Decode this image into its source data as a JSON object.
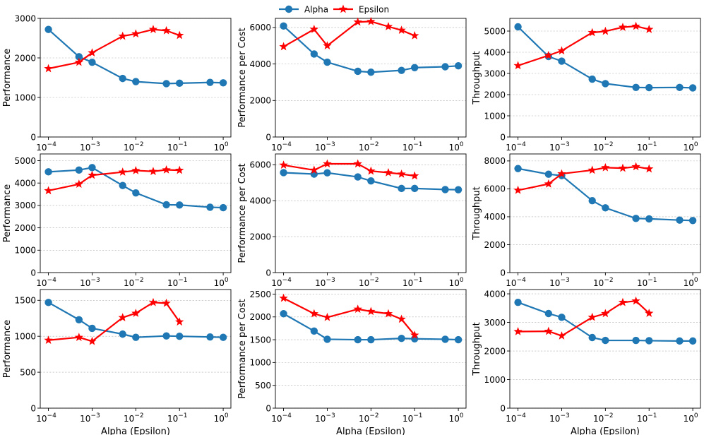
{
  "legend": {
    "items": [
      {
        "name": "Alpha",
        "color": "#1f77b4",
        "marker": "circle"
      },
      {
        "name": "Epsilon",
        "color": "#ff0000",
        "marker": "star"
      }
    ]
  },
  "chart_data": [
    {
      "type": "line",
      "row": 1,
      "col": 1,
      "ylabel": "Performance",
      "xlabel": "",
      "xscale": "log",
      "xlim": [
        6.5e-05,
        1.5
      ],
      "ylim": [
        0,
        3000
      ],
      "yticks": [
        0,
        1000,
        2000,
        3000
      ],
      "xticks": [
        "-4",
        "-3",
        "-2",
        "-1",
        "0"
      ],
      "series": [
        {
          "name": "Alpha",
          "x": [
            0.0001,
            0.0005,
            0.001,
            0.005,
            0.01,
            0.05,
            0.1,
            0.5,
            1
          ],
          "y": [
            2720,
            2030,
            1890,
            1480,
            1400,
            1350,
            1360,
            1380,
            1370
          ]
        },
        {
          "name": "Epsilon",
          "x": [
            0.0001,
            0.0005,
            0.001,
            0.005,
            0.01,
            0.025,
            0.05,
            0.1
          ],
          "y": [
            1730,
            1890,
            2130,
            2550,
            2610,
            2720,
            2690,
            2570
          ]
        }
      ]
    },
    {
      "type": "line",
      "row": 1,
      "col": 2,
      "ylabel": "Performance per Cost",
      "xlabel": "",
      "xscale": "log",
      "xlim": [
        6.5e-05,
        1.5
      ],
      "ylim": [
        0,
        6500
      ],
      "yticks": [
        0,
        2000,
        4000,
        6000
      ],
      "xticks": [
        "-4",
        "-3",
        "-2",
        "-1",
        "0"
      ],
      "series": [
        {
          "name": "Alpha",
          "x": [
            0.0001,
            0.0005,
            0.001,
            0.005,
            0.01,
            0.05,
            0.1,
            0.5,
            1
          ],
          "y": [
            6080,
            4550,
            4100,
            3600,
            3550,
            3650,
            3800,
            3850,
            3900
          ]
        },
        {
          "name": "Epsilon",
          "x": [
            0.0001,
            0.0005,
            0.001,
            0.005,
            0.01,
            0.025,
            0.05,
            0.1
          ],
          "y": [
            4950,
            5900,
            5000,
            6300,
            6330,
            6050,
            5850,
            5550
          ]
        }
      ]
    },
    {
      "type": "line",
      "row": 1,
      "col": 3,
      "ylabel": "Throughput",
      "xlabel": "",
      "xscale": "log",
      "xlim": [
        6.5e-05,
        1.5
      ],
      "ylim": [
        0,
        5600
      ],
      "yticks": [
        0,
        1000,
        2000,
        3000,
        4000,
        5000
      ],
      "xticks": [
        "-4",
        "-3",
        "-2",
        "-1",
        "0"
      ],
      "series": [
        {
          "name": "Alpha",
          "x": [
            0.0001,
            0.0005,
            0.001,
            0.005,
            0.01,
            0.05,
            0.1,
            0.5,
            1
          ],
          "y": [
            5200,
            3800,
            3580,
            2730,
            2520,
            2340,
            2330,
            2340,
            2320
          ]
        },
        {
          "name": "Epsilon",
          "x": [
            0.0001,
            0.0005,
            0.001,
            0.005,
            0.01,
            0.025,
            0.05,
            0.1
          ],
          "y": [
            3370,
            3850,
            4070,
            4930,
            4990,
            5180,
            5230,
            5080
          ]
        }
      ]
    },
    {
      "type": "line",
      "row": 2,
      "col": 1,
      "ylabel": "Performance",
      "xlabel": "",
      "xscale": "log",
      "xlim": [
        6.5e-05,
        1.5
      ],
      "ylim": [
        0,
        5300
      ],
      "yticks": [
        0,
        1000,
        2000,
        3000,
        4000,
        5000
      ],
      "xticks": [
        "-4",
        "-3",
        "-2",
        "-1",
        "0"
      ],
      "series": [
        {
          "name": "Alpha",
          "x": [
            0.0001,
            0.0005,
            0.001,
            0.005,
            0.01,
            0.05,
            0.1,
            0.5,
            1
          ],
          "y": [
            4500,
            4580,
            4690,
            3890,
            3560,
            3030,
            3020,
            2920,
            2900
          ]
        },
        {
          "name": "Epsilon",
          "x": [
            0.0001,
            0.0005,
            0.001,
            0.005,
            0.01,
            0.025,
            0.05,
            0.1
          ],
          "y": [
            3660,
            3950,
            4350,
            4490,
            4560,
            4520,
            4590,
            4570
          ]
        }
      ]
    },
    {
      "type": "line",
      "row": 2,
      "col": 2,
      "ylabel": "Performance per Cost",
      "xlabel": "",
      "xscale": "log",
      "xlim": [
        6.5e-05,
        1.5
      ],
      "ylim": [
        0,
        6600
      ],
      "yticks": [
        0,
        2000,
        4000,
        6000
      ],
      "xticks": [
        "-4",
        "-3",
        "-2",
        "-1",
        "0"
      ],
      "series": [
        {
          "name": "Alpha",
          "x": [
            0.0001,
            0.0005,
            0.001,
            0.005,
            0.01,
            0.05,
            0.1,
            0.5,
            1
          ],
          "y": [
            5560,
            5480,
            5550,
            5320,
            5100,
            4680,
            4680,
            4620,
            4610
          ]
        },
        {
          "name": "Epsilon",
          "x": [
            0.0001,
            0.0005,
            0.001,
            0.005,
            0.01,
            0.025,
            0.05,
            0.1
          ],
          "y": [
            5980,
            5700,
            6050,
            6050,
            5650,
            5560,
            5480,
            5380
          ]
        }
      ]
    },
    {
      "type": "line",
      "row": 2,
      "col": 3,
      "ylabel": "Throughput",
      "xlabel": "",
      "xscale": "log",
      "xlim": [
        6.5e-05,
        1.5
      ],
      "ylim": [
        0,
        8500
      ],
      "yticks": [
        0,
        2000,
        4000,
        6000,
        8000
      ],
      "xticks": [
        "-4",
        "-3",
        "-2",
        "-1",
        "0"
      ],
      "series": [
        {
          "name": "Alpha",
          "x": [
            0.0001,
            0.0005,
            0.001,
            0.005,
            0.01,
            0.05,
            0.1,
            0.5,
            1
          ],
          "y": [
            7450,
            7050,
            6950,
            5150,
            4640,
            3880,
            3850,
            3760,
            3730
          ]
        },
        {
          "name": "Epsilon",
          "x": [
            0.0001,
            0.0005,
            0.001,
            0.005,
            0.01,
            0.025,
            0.05,
            0.1
          ],
          "y": [
            5900,
            6350,
            7080,
            7340,
            7520,
            7480,
            7590,
            7430
          ]
        }
      ]
    },
    {
      "type": "line",
      "row": 3,
      "col": 1,
      "ylabel": "Performance",
      "xlabel": "Alpha (Epsilon)",
      "xscale": "log",
      "xlim": [
        6.5e-05,
        1.5
      ],
      "ylim": [
        0,
        1650
      ],
      "yticks": [
        0,
        500,
        1000,
        1500
      ],
      "xticks": [
        "-4",
        "-3",
        "-2",
        "-1",
        "0"
      ],
      "series": [
        {
          "name": "Alpha",
          "x": [
            0.0001,
            0.0005,
            0.001,
            0.005,
            0.01,
            0.05,
            0.1,
            0.5,
            1
          ],
          "y": [
            1470,
            1230,
            1110,
            1030,
            985,
            1005,
            1000,
            990,
            985
          ]
        },
        {
          "name": "Epsilon",
          "x": [
            0.0001,
            0.0005,
            0.001,
            0.005,
            0.01,
            0.025,
            0.05,
            0.1
          ],
          "y": [
            945,
            985,
            930,
            1260,
            1320,
            1470,
            1460,
            1200
          ]
        }
      ]
    },
    {
      "type": "line",
      "row": 3,
      "col": 2,
      "ylabel": "Performance per Cost",
      "xlabel": "Alpha (Epsilon)",
      "xscale": "log",
      "xlim": [
        6.5e-05,
        1.5
      ],
      "ylim": [
        0,
        2600
      ],
      "yticks": [
        0,
        500,
        1000,
        1500,
        2000,
        2500
      ],
      "xticks": [
        "-4",
        "-3",
        "-2",
        "-1",
        "0"
      ],
      "series": [
        {
          "name": "Alpha",
          "x": [
            0.0001,
            0.0005,
            0.001,
            0.005,
            0.01,
            0.05,
            0.1,
            0.5,
            1
          ],
          "y": [
            2070,
            1690,
            1510,
            1500,
            1500,
            1530,
            1520,
            1510,
            1500
          ]
        },
        {
          "name": "Epsilon",
          "x": [
            0.0001,
            0.0005,
            0.001,
            0.005,
            0.01,
            0.025,
            0.05,
            0.1
          ],
          "y": [
            2410,
            2070,
            1990,
            2170,
            2120,
            2070,
            1950,
            1600
          ]
        }
      ]
    },
    {
      "type": "line",
      "row": 3,
      "col": 3,
      "ylabel": "Throughput",
      "xlabel": "Alpha (Epsilon)",
      "xscale": "log",
      "xlim": [
        6.5e-05,
        1.5
      ],
      "ylim": [
        0,
        4150
      ],
      "yticks": [
        0,
        1000,
        2000,
        3000,
        4000
      ],
      "xticks": [
        "-4",
        "-3",
        "-2",
        "-1",
        "0"
      ],
      "series": [
        {
          "name": "Alpha",
          "x": [
            0.0001,
            0.0005,
            0.001,
            0.005,
            0.01,
            0.05,
            0.1,
            0.5,
            1
          ],
          "y": [
            3700,
            3310,
            3180,
            2470,
            2370,
            2370,
            2360,
            2350,
            2350
          ]
        },
        {
          "name": "Epsilon",
          "x": [
            0.0001,
            0.0005,
            0.001,
            0.005,
            0.01,
            0.025,
            0.05,
            0.1
          ],
          "y": [
            2680,
            2690,
            2530,
            3180,
            3310,
            3700,
            3750,
            3320
          ]
        }
      ]
    }
  ]
}
